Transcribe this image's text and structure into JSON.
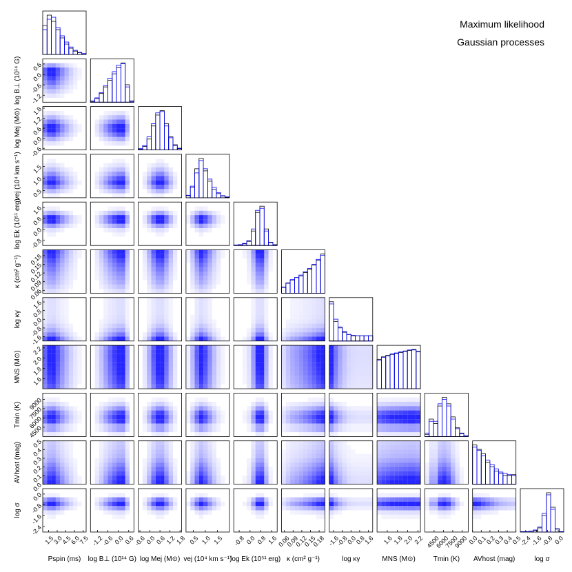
{
  "chart_data": {
    "type": "corner",
    "series": [
      {
        "name": "Maximum likelihood",
        "color": "#000000"
      },
      {
        "name": "Gaussian processes",
        "color": "#0000ff"
      }
    ],
    "parameters": [
      {
        "label": "Pspin (ms)",
        "lim": [
          0.5,
          8
        ],
        "ticks": [
          1.5,
          {
            "value": 3,
            "label": "3.0"
          },
          4.5,
          {
            "value": 6,
            "label": "6.0"
          },
          7.5
        ],
        "bins": [
          0.5,
          1.25,
          2,
          2.75,
          3.5,
          4.25,
          5,
          5.75,
          6.5,
          7.25,
          8
        ],
        "series": [
          {
            "values": [
              70,
              95,
              80,
              60,
              40,
              25,
              15,
              8,
              4,
              2
            ]
          },
          {
            "values": [
              60,
              85,
              90,
              65,
              45,
              30,
              18,
              10,
              5,
              2
            ]
          }
        ]
      },
      {
        "label": "log B⊥ (10¹⁴ G)",
        "lim": [
          -1.6,
          0.9
        ],
        "ticks": [
          -1.2,
          -0.6,
          {
            "value": 0,
            "label": "0.0"
          },
          0.6
        ],
        "bins": [
          -1.6,
          -1.35,
          -1.1,
          -0.85,
          -0.6,
          -0.35,
          -0.1,
          0.15,
          0.4,
          0.65,
          0.9
        ],
        "series": [
          {
            "values": [
              2,
              8,
              20,
              35,
              50,
              65,
              80,
              90,
              40,
              3
            ]
          },
          {
            "values": [
              3,
              10,
              22,
              38,
              55,
              70,
              85,
              88,
              35,
              2
            ]
          }
        ]
      },
      {
        "label": "log Mej (M⊙)",
        "lim": [
          -0.7,
          1.9
        ],
        "ticks": [
          -0.6,
          {
            "value": 0,
            "label": "0.0"
          },
          0.6,
          1.2,
          1.8
        ],
        "bins": [
          -0.7,
          -0.44,
          -0.18,
          0.08,
          0.34,
          0.6,
          0.86,
          1.12,
          1.38,
          1.64,
          1.9
        ],
        "series": [
          {
            "values": [
              2,
              8,
              25,
              55,
              80,
              90,
              60,
              30,
              12,
              4
            ]
          },
          {
            "values": [
              3,
              10,
              30,
              60,
              85,
              88,
              55,
              28,
              10,
              3
            ]
          }
        ]
      },
      {
        "label": "vej (10⁴ km s⁻¹)",
        "lim": [
          0.2,
          2.0
        ],
        "ticks": [
          0.5,
          {
            "value": 1,
            "label": "1.0"
          },
          1.5
        ],
        "bins": [
          0.2,
          0.38,
          0.56,
          0.74,
          0.92,
          1.1,
          1.28,
          1.46,
          1.64,
          1.82,
          2.0
        ],
        "series": [
          {
            "values": [
              5,
              25,
              70,
              95,
              65,
              40,
              20,
              10,
              4,
              1
            ]
          },
          {
            "values": [
              6,
              28,
              60,
              90,
              70,
              45,
              25,
              12,
              5,
              2
            ]
          }
        ]
      },
      {
        "label": "log Ek (10⁵¹ erg)",
        "lim": [
          -1.2,
          2.0
        ],
        "ticks": [
          -0.8,
          {
            "value": 0,
            "label": "0.0"
          },
          0.8,
          1.6
        ],
        "bins": [
          -1.2,
          -0.88,
          -0.56,
          -0.24,
          0.08,
          0.4,
          0.72,
          1.04,
          1.36,
          1.68,
          2.0
        ],
        "series": [
          {
            "values": [
              1,
              2,
              4,
              10,
              35,
              80,
              95,
              40,
              8,
              2
            ]
          },
          {
            "values": [
              1,
              2,
              5,
              12,
              40,
              85,
              90,
              35,
              7,
              1
            ]
          }
        ]
      },
      {
        "label": "κ (cm² g⁻¹)",
        "lim": [
          0.05,
          0.2
        ],
        "ticks": [
          0.06,
          0.09,
          0.12,
          0.15,
          0.18
        ],
        "bins": [
          0.05,
          0.065,
          0.08,
          0.095,
          0.11,
          0.125,
          0.14,
          0.155,
          0.17,
          0.185,
          0.2
        ],
        "series": [
          {
            "values": [
              15,
              25,
              32,
              38,
              42,
              50,
              58,
              68,
              80,
              95
            ]
          },
          {
            "values": [
              14,
              24,
              33,
              38,
              44,
              52,
              60,
              70,
              82,
              92
            ]
          }
        ]
      },
      {
        "label": "log κγ",
        "lim": [
          -2,
          2
        ],
        "ticks": [
          -1.6,
          -0.8,
          {
            "value": 0,
            "label": "0.0"
          },
          0.8,
          1.6
        ],
        "bins": [
          -2,
          -1.6,
          -1.2,
          -0.8,
          -0.4,
          0,
          0.4,
          0.8,
          1.2,
          1.6,
          2
        ],
        "series": [
          {
            "values": [
              90,
              45,
              30,
              20,
              15,
              12,
              12,
              12,
              12,
              12
            ]
          },
          {
            "values": [
              85,
              50,
              32,
              22,
              15,
              13,
              12,
              12,
              12,
              12
            ]
          }
        ]
      },
      {
        "label": "MNS (M⊙)",
        "lim": [
          1.4,
          2.25
        ],
        "ticks": [
          1.6,
          1.8,
          {
            "value": 2,
            "label": "2.0"
          },
          2.2
        ],
        "bins": [
          1.4,
          1.485,
          1.57,
          1.655,
          1.74,
          1.825,
          1.91,
          1.995,
          2.08,
          2.165,
          2.25
        ],
        "series": [
          {
            "values": [
              60,
              65,
              68,
              70,
              72,
              74,
              76,
              78,
              80,
              76
            ]
          },
          {
            "values": [
              58,
              64,
              67,
              71,
              73,
              75,
              77,
              79,
              79,
              75
            ]
          }
        ]
      },
      {
        "label": "Tmin (K)",
        "lim": [
          3000,
          10000
        ],
        "ticks": [
          4500,
          6000,
          7500,
          9000
        ],
        "bins": [
          3000,
          3700,
          4400,
          5100,
          5800,
          6500,
          7200,
          7900,
          8600,
          9300,
          10000
        ],
        "series": [
          {
            "values": [
              5,
              40,
              30,
              70,
              90,
              75,
              45,
              20,
              8,
              2
            ]
          },
          {
            "values": [
              8,
              35,
              35,
              75,
              85,
              70,
              40,
              18,
              6,
              2
            ]
          }
        ]
      },
      {
        "label": "AVhost (mag)",
        "lim": [
          0,
          0.5
        ],
        "ticks": [
          {
            "value": 0,
            "label": "0.0"
          },
          0.1,
          0.2,
          0.3,
          0.4,
          0.5
        ],
        "bins": [
          0,
          0.05,
          0.1,
          0.15,
          0.2,
          0.25,
          0.3,
          0.35,
          0.4,
          0.45,
          0.5
        ],
        "series": [
          {
            "values": [
              90,
              80,
              70,
              50,
              40,
              30,
              25,
              20,
              20,
              22
            ]
          },
          {
            "values": [
              85,
              78,
              65,
              55,
              45,
              35,
              28,
              25,
              22,
              20
            ]
          }
        ]
      },
      {
        "label": "log σ",
        "lim": [
          -2.8,
          0.4
        ],
        "ticks": [
          -2.4,
          -1.6,
          -0.8,
          {
            "value": 0,
            "label": "0.0"
          }
        ],
        "bins": [
          -2.8,
          -2.48,
          -2.16,
          -1.84,
          -1.52,
          -1.2,
          -0.88,
          -0.56,
          -0.24,
          0.08,
          0.4
        ],
        "series": [
          {
            "values": [
              1,
              1,
              2,
              4,
              10,
              40,
              95,
              60,
              8,
              1
            ]
          },
          {
            "values": [
              1,
              1,
              2,
              5,
              12,
              45,
              90,
              55,
              7,
              1
            ]
          }
        ]
      }
    ]
  }
}
